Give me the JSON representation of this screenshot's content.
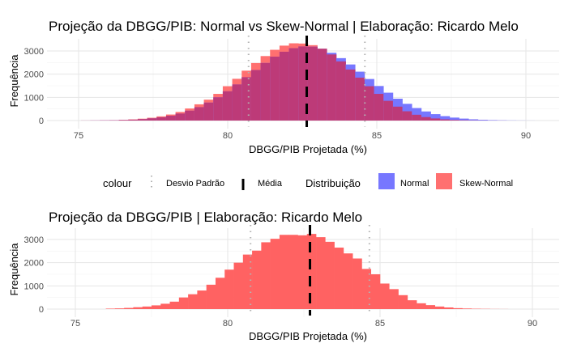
{
  "legend": {
    "colour_title": "colour",
    "sd_label": "Desvio Padrão",
    "mean_label": "Média",
    "dist_title": "Distribuição",
    "normal_label": "Normal",
    "skew_label": "Skew-Normal"
  },
  "colors": {
    "normal": "#7777ff",
    "skew": "#ff7070",
    "overlap": "#bd3a78",
    "skew_solid": "#ff6262",
    "mean_line": "#000000",
    "sd_line": "#b3b3b3"
  },
  "chart_data": [
    {
      "type": "bar",
      "title": "Projeção da DBGG/PIB: Normal vs Skew-Normal | Elaboração: Ricardo Melo",
      "xlabel": "DBGG/PIB Projetada (%)",
      "ylabel": "Frequência",
      "xlim": [
        74,
        91.2
      ],
      "ylim": [
        0,
        3450
      ],
      "xticks": [
        "75",
        "80",
        "85",
        "90"
      ],
      "yticks": [
        "0",
        "1000",
        "2000",
        "3000"
      ],
      "grid": true,
      "bin_start": 75.08,
      "bin_width": 0.317,
      "series": [
        {
          "name": "Normal",
          "values": [
            2,
            4,
            8,
            13,
            22,
            37,
            59,
            93,
            141,
            207,
            300,
            424,
            578,
            773,
            1002,
            1261,
            1556,
            1869,
            2178,
            2482,
            2754,
            2966,
            3121,
            3194,
            3183,
            3093,
            2922,
            2690,
            2418,
            2108,
            1791,
            1488,
            1201,
            942,
            721,
            540,
            392,
            276,
            191,
            128,
            84,
            53,
            33,
            20,
            12,
            7,
            4,
            2
          ]
        },
        {
          "name": "Skew-Normal",
          "values": [
            3,
            5,
            10,
            18,
            30,
            50,
            80,
            120,
            180,
            260,
            370,
            520,
            700,
            900,
            1150,
            1480,
            1800,
            2150,
            2480,
            2780,
            3050,
            3230,
            3330,
            3320,
            3250,
            3100,
            2850,
            2550,
            2200,
            1850,
            1480,
            1150,
            850,
            600,
            400,
            250,
            150,
            90,
            50,
            28,
            15,
            8,
            4,
            2,
            1,
            0,
            0,
            0
          ]
        }
      ],
      "mean": 82.65,
      "sd_lines": [
        80.7,
        84.6
      ]
    },
    {
      "type": "bar",
      "title": "Projeção da DBGG/PIB | Elaboração: Ricardo Melo",
      "xlabel": "DBGG/PIB Projetada (%)",
      "ylabel": "Frequência",
      "xlim": [
        74,
        91.2
      ],
      "ylim": [
        0,
        3450
      ],
      "xticks": [
        "75",
        "80",
        "85",
        "90"
      ],
      "yticks": [
        "0",
        "1000",
        "2000",
        "3000"
      ],
      "grid": true,
      "bin_start": 76.0,
      "bin_width": 0.3,
      "series": [
        {
          "values": [
            20,
            30,
            50,
            80,
            110,
            160,
            230,
            320,
            500,
            640,
            800,
            1050,
            1350,
            1700,
            2000,
            2350,
            2520,
            2880,
            3030,
            3200,
            3200,
            3180,
            3240,
            3100,
            2900,
            2650,
            2400,
            2180,
            1730,
            1500,
            1100,
            860,
            600,
            380,
            250,
            170,
            110,
            70,
            40,
            25,
            15,
            10,
            5,
            3
          ]
        }
      ],
      "mean": 82.7,
      "sd_lines": [
        80.75,
        84.65
      ]
    }
  ]
}
